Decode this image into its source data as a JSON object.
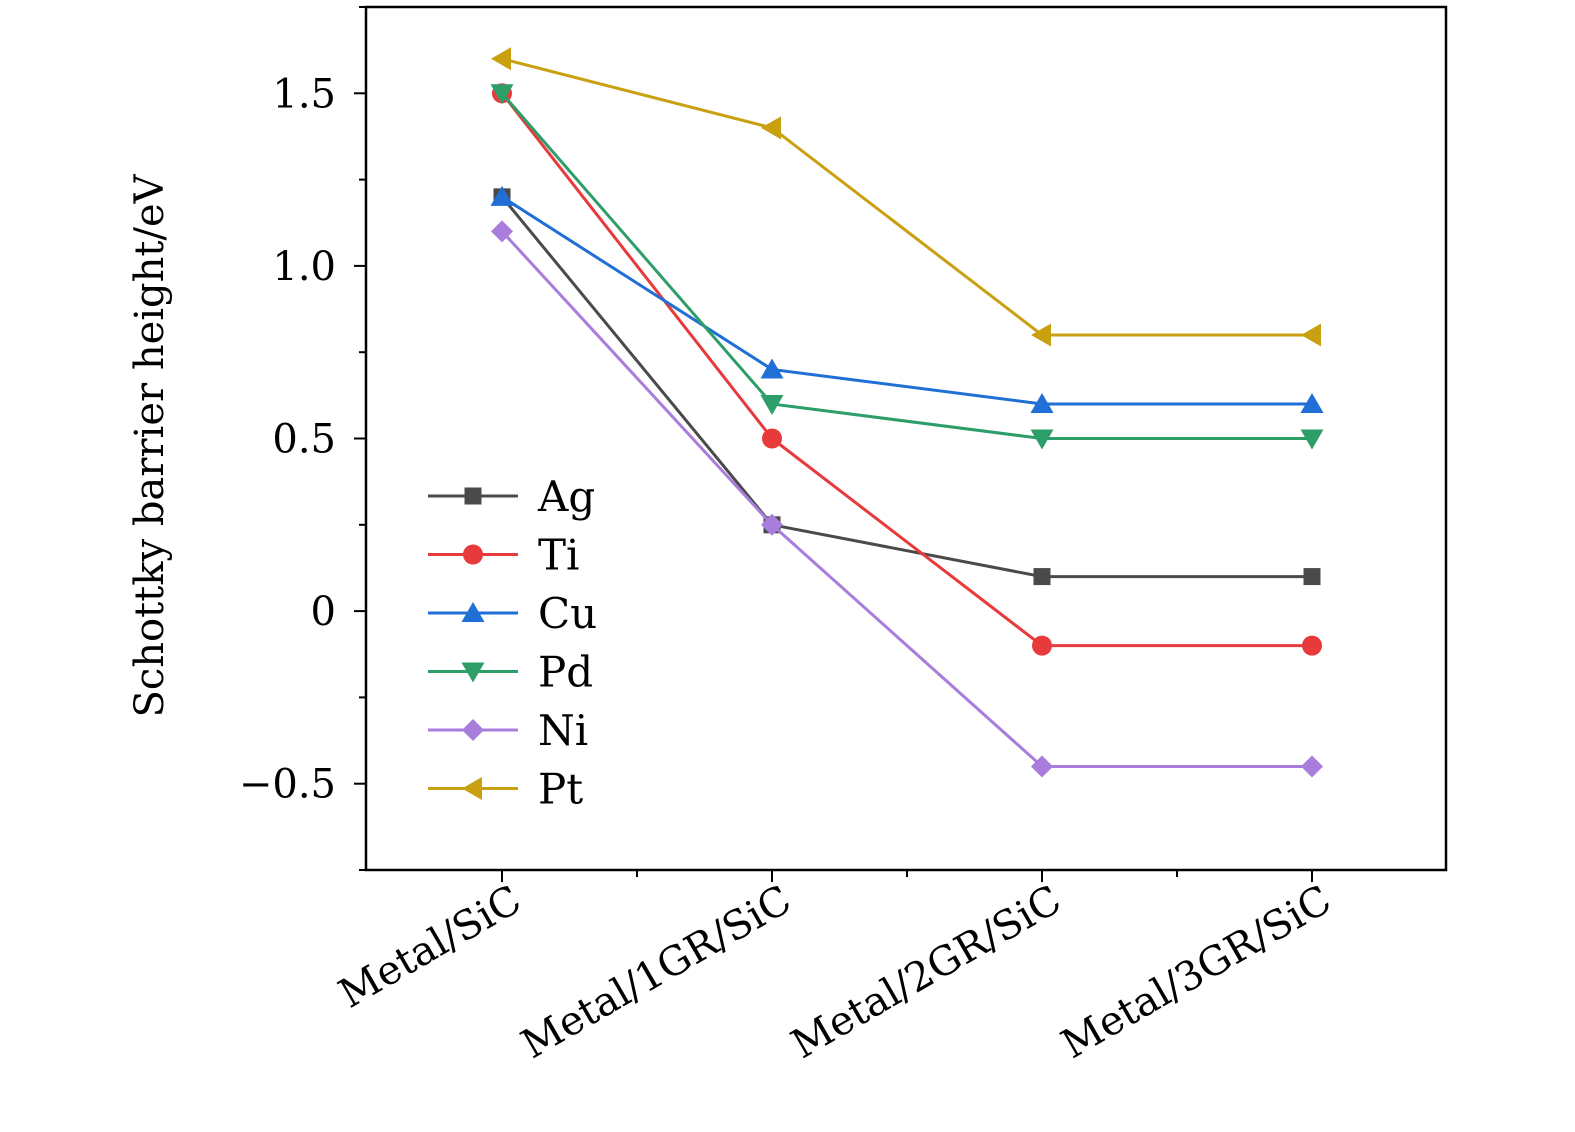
{
  "chart_data": {
    "type": "line",
    "title": "",
    "xlabel": "",
    "ylabel": "Schottky barrier height/eV",
    "categories": [
      "Metal/SiC",
      "Metal/1GR/SiC",
      "Metal/2GR/SiC",
      "Metal/3GR/SiC"
    ],
    "ylim": [
      -0.75,
      1.75
    ],
    "yticks": [
      -0.5,
      0,
      0.5,
      1.0,
      1.5
    ],
    "ytick_labels": [
      "−0.5",
      "0",
      "0.5",
      "1.0",
      "1.5"
    ],
    "grid": false,
    "legend_position": "bottom-left",
    "series": [
      {
        "name": "Ag",
        "color": "#4a4a4a",
        "marker": "square",
        "values": [
          1.2,
          0.25,
          0.1,
          0.1
        ]
      },
      {
        "name": "Ti",
        "color": "#e8393b",
        "marker": "circle",
        "values": [
          1.5,
          0.5,
          -0.1,
          -0.1
        ]
      },
      {
        "name": "Cu",
        "color": "#1f6fd6",
        "marker": "triangle-up",
        "values": [
          1.2,
          0.7,
          0.6,
          0.6
        ]
      },
      {
        "name": "Pd",
        "color": "#2e9e68",
        "marker": "triangle-down",
        "values": [
          1.5,
          0.6,
          0.5,
          0.5
        ]
      },
      {
        "name": "Ni",
        "color": "#a97ddb",
        "marker": "diamond",
        "values": [
          1.1,
          0.25,
          -0.45,
          -0.45
        ]
      },
      {
        "name": "Pt",
        "color": "#c9a010",
        "marker": "triangle-left",
        "values": [
          1.6,
          1.4,
          0.8,
          0.8
        ]
      }
    ]
  }
}
